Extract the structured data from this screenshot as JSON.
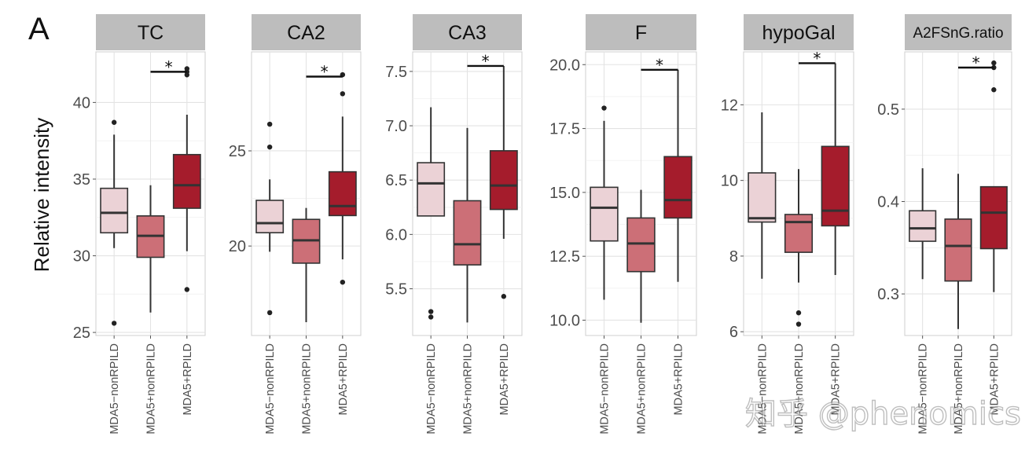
{
  "panel_letter": "A",
  "y_axis_title": "Relative intensity",
  "watermark": "知乎 @phenomics",
  "colors": {
    "MDA5-nonRPILD": "#ebd2d6",
    "MDA5+nonRPILD": "#cc6f77",
    "MDA5+RPILD": "#a51c2c",
    "strip": "#bdbdbd"
  },
  "chart_data": [
    {
      "type": "box",
      "title": "TC",
      "categories": [
        "MDA5−nonRPILD",
        "MDA5+nonRPILD",
        "MDA5+RPILD"
      ],
      "ylim": [
        24.8,
        43.3
      ],
      "yticks": [
        "25",
        "30",
        "35",
        "40"
      ],
      "grid": true,
      "boxes": [
        {
          "q1": 31.5,
          "median": 32.8,
          "q3": 34.4,
          "whisker_low": 30.5,
          "whisker_high": 37.9,
          "outliers": [
            38.7,
            25.6
          ]
        },
        {
          "q1": 29.9,
          "median": 31.3,
          "q3": 32.6,
          "whisker_low": 26.3,
          "whisker_high": 34.6,
          "outliers": []
        },
        {
          "q1": 33.1,
          "median": 34.6,
          "q3": 36.6,
          "whisker_low": 30.3,
          "whisker_high": 39.2,
          "outliers": [
            41.8,
            42.0,
            42.2,
            27.8
          ]
        }
      ],
      "significance": [
        {
          "from": 1,
          "to": 2,
          "label": "*",
          "y": 42.0
        }
      ]
    },
    {
      "type": "box",
      "title": "CA2",
      "categories": [
        "MDA5−nonRPILD",
        "MDA5+nonRPILD",
        "MDA5+RPILD"
      ],
      "ylim": [
        15.3,
        30.2
      ],
      "yticks": [
        "20",
        "25"
      ],
      "grid": true,
      "boxes": [
        {
          "q1": 20.7,
          "median": 21.2,
          "q3": 22.4,
          "whisker_low": 19.7,
          "whisker_high": 23.5,
          "outliers": [
            26.4,
            25.2,
            16.5
          ]
        },
        {
          "q1": 19.1,
          "median": 20.3,
          "q3": 21.4,
          "whisker_low": 16.0,
          "whisker_high": 22.0,
          "outliers": []
        },
        {
          "q1": 21.6,
          "median": 22.1,
          "q3": 23.9,
          "whisker_low": 19.3,
          "whisker_high": 26.8,
          "outliers": [
            28.0,
            29.0,
            18.1
          ]
        }
      ],
      "significance": [
        {
          "from": 1,
          "to": 2,
          "label": "*",
          "y": 28.9
        }
      ]
    },
    {
      "type": "box",
      "title": "CA3",
      "categories": [
        "MDA5−nonRPILD",
        "MDA5+nonRPILD",
        "MDA5+RPILD"
      ],
      "ylim": [
        5.07,
        7.68
      ],
      "yticks": [
        "5.5",
        "6.0",
        "6.5",
        "7.0",
        "7.5"
      ],
      "grid": true,
      "boxes": [
        {
          "q1": 6.17,
          "median": 6.47,
          "q3": 6.66,
          "whisker_low": 6.17,
          "whisker_high": 7.17,
          "outliers": [
            5.29,
            5.24
          ]
        },
        {
          "q1": 5.72,
          "median": 5.91,
          "q3": 6.31,
          "whisker_low": 5.19,
          "whisker_high": 6.98,
          "outliers": []
        },
        {
          "q1": 6.23,
          "median": 6.45,
          "q3": 6.77,
          "whisker_low": 5.96,
          "whisker_high": 7.55,
          "outliers": [
            5.43
          ]
        }
      ],
      "significance": [
        {
          "from": 1,
          "to": 2,
          "label": "*",
          "y": 7.55
        }
      ]
    },
    {
      "type": "box",
      "title": "F",
      "categories": [
        "MDA5−nonRPILD",
        "MDA5+nonRPILD",
        "MDA5+RPILD"
      ],
      "ylim": [
        9.4,
        20.5
      ],
      "yticks": [
        "10.0",
        "12.5",
        "15.0",
        "17.5",
        "20.0"
      ],
      "grid": true,
      "boxes": [
        {
          "q1": 13.1,
          "median": 14.4,
          "q3": 15.2,
          "whisker_low": 10.8,
          "whisker_high": 17.8,
          "outliers": [
            18.3
          ]
        },
        {
          "q1": 11.9,
          "median": 13.0,
          "q3": 14.0,
          "whisker_low": 9.9,
          "whisker_high": 15.1,
          "outliers": []
        },
        {
          "q1": 14.0,
          "median": 14.7,
          "q3": 16.4,
          "whisker_low": 11.5,
          "whisker_high": 19.8,
          "outliers": []
        }
      ],
      "significance": [
        {
          "from": 1,
          "to": 2,
          "label": "*",
          "y": 19.8
        }
      ]
    },
    {
      "type": "box",
      "title": "hypoGal",
      "categories": [
        "MDA5−nonRPILD",
        "MDA5+nonRPILD",
        "MDA5+RPILD"
      ],
      "ylim": [
        5.9,
        13.4
      ],
      "yticks": [
        "6",
        "8",
        "10",
        "12"
      ],
      "grid": true,
      "boxes": [
        {
          "q1": 8.9,
          "median": 9.0,
          "q3": 10.2,
          "whisker_low": 7.4,
          "whisker_high": 11.8,
          "outliers": []
        },
        {
          "q1": 8.1,
          "median": 8.9,
          "q3": 9.1,
          "whisker_low": 7.3,
          "whisker_high": 10.3,
          "outliers": [
            6.5,
            6.2
          ]
        },
        {
          "q1": 8.8,
          "median": 9.2,
          "q3": 10.9,
          "whisker_low": 7.5,
          "whisker_high": 13.1,
          "outliers": []
        }
      ],
      "significance": [
        {
          "from": 1,
          "to": 2,
          "label": "*",
          "y": 13.1
        }
      ]
    },
    {
      "type": "box",
      "title": "A2FSnG.ratio",
      "categories": [
        "MDA5−nonRPILD",
        "MDA5+nonRPILD",
        "MDA5+RPILD"
      ],
      "ylim": [
        0.255,
        0.562
      ],
      "yticks": [
        "0.3",
        "0.4",
        "0.5"
      ],
      "grid": true,
      "boxes": [
        {
          "q1": 0.357,
          "median": 0.371,
          "q3": 0.39,
          "whisker_low": 0.316,
          "whisker_high": 0.436,
          "outliers": []
        },
        {
          "q1": 0.314,
          "median": 0.352,
          "q3": 0.381,
          "whisker_low": 0.262,
          "whisker_high": 0.43,
          "outliers": []
        },
        {
          "q1": 0.349,
          "median": 0.388,
          "q3": 0.416,
          "whisker_low": 0.302,
          "whisker_high": 0.416,
          "outliers": [
            0.55,
            0.545,
            0.521
          ]
        }
      ],
      "significance": [
        {
          "from": 1,
          "to": 2,
          "label": "*",
          "y": 0.545
        }
      ]
    }
  ]
}
